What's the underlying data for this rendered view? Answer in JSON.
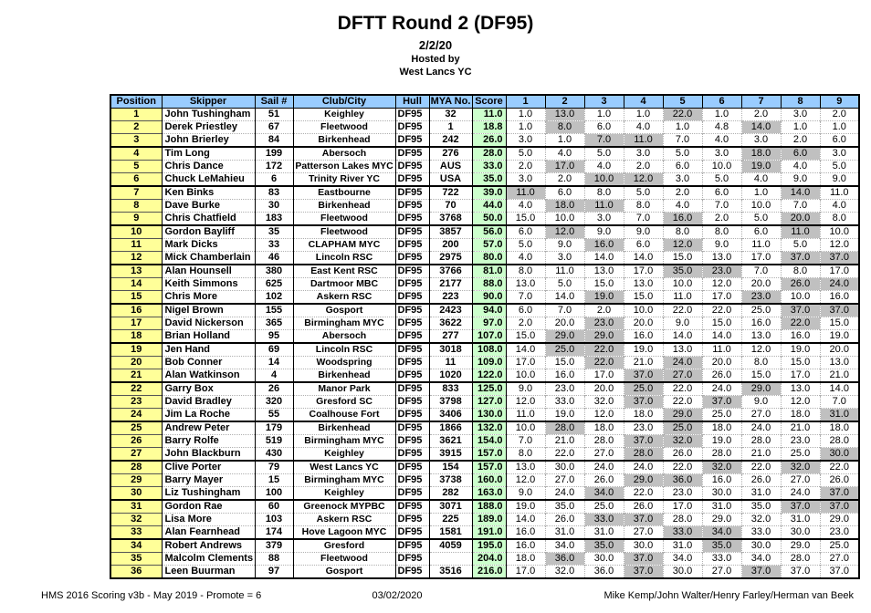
{
  "header": {
    "title": "DFTT Round 2 (DF95)",
    "date": "2/2/20",
    "hosted_by": "Hosted by",
    "host_club": "West Lancs YC"
  },
  "colors": {
    "header_bg": "#99CCFF",
    "position_bg": "#FFFF99",
    "score_bg": "#CCFFCC",
    "discard_bg": "#C0C0C0"
  },
  "table": {
    "headers": [
      "Position",
      "Skipper",
      "Sail #",
      "Club/City",
      "Hull",
      "MYA No.",
      "Score",
      "1",
      "2",
      "3",
      "4",
      "5",
      "6",
      "7",
      "8",
      "9"
    ],
    "rows": [
      {
        "pos": "1",
        "skipper": "John Tushingham",
        "sail": "51",
        "club": "Keighley",
        "hull": "DF95",
        "mya": "32",
        "score": "11.0",
        "races": [
          "1.0",
          "13.0",
          "1.0",
          "1.0",
          "22.0",
          "1.0",
          "2.0",
          "3.0",
          "2.0"
        ],
        "discards": [
          1,
          4
        ]
      },
      {
        "pos": "2",
        "skipper": "Derek Priestley",
        "sail": "67",
        "club": "Fleetwood",
        "hull": "DF95",
        "mya": "1",
        "score": "18.8",
        "races": [
          "1.0",
          "8.0",
          "6.0",
          "4.0",
          "1.0",
          "4.8",
          "14.0",
          "1.0",
          "1.0"
        ],
        "discards": [
          1,
          6
        ]
      },
      {
        "pos": "3",
        "skipper": "John Brierley",
        "sail": "84",
        "club": "Birkenhead",
        "hull": "DF95",
        "mya": "242",
        "score": "26.0",
        "races": [
          "3.0",
          "1.0",
          "7.0",
          "11.0",
          "7.0",
          "4.0",
          "3.0",
          "2.0",
          "6.0"
        ],
        "discards": [
          2,
          3
        ]
      },
      {
        "pos": "4",
        "skipper": "Tim Long",
        "sail": "199",
        "club": "Abersoch",
        "hull": "DF95",
        "mya": "276",
        "score": "28.0",
        "races": [
          "5.0",
          "4.0",
          "5.0",
          "3.0",
          "5.0",
          "3.0",
          "18.0",
          "6.0",
          "3.0"
        ],
        "discards": [
          6,
          7
        ]
      },
      {
        "pos": "5",
        "skipper": "Chris Dance",
        "sail": "172",
        "club": "Patterson Lakes MYC",
        "hull": "DF95",
        "mya": "AUS",
        "score": "33.0",
        "races": [
          "2.0",
          "17.0",
          "4.0",
          "2.0",
          "6.0",
          "10.0",
          "19.0",
          "4.0",
          "5.0"
        ],
        "discards": [
          1,
          6
        ]
      },
      {
        "pos": "6",
        "skipper": "Chuck LeMahieu",
        "sail": "6",
        "club": "Trinity River YC",
        "hull": "DF95",
        "mya": "USA",
        "score": "35.0",
        "races": [
          "3.0",
          "2.0",
          "10.0",
          "12.0",
          "3.0",
          "5.0",
          "4.0",
          "9.0",
          "9.0"
        ],
        "discards": [
          2,
          3
        ]
      },
      {
        "pos": "7",
        "skipper": "Ken Binks",
        "sail": "83",
        "club": "Eastbourne",
        "hull": "DF95",
        "mya": "722",
        "score": "39.0",
        "races": [
          "11.0",
          "6.0",
          "8.0",
          "5.0",
          "2.0",
          "6.0",
          "1.0",
          "14.0",
          "11.0"
        ],
        "discards": [
          0,
          7
        ]
      },
      {
        "pos": "8",
        "skipper": "Dave Burke",
        "sail": "30",
        "club": "Birkenhead",
        "hull": "DF95",
        "mya": "70",
        "score": "44.0",
        "races": [
          "4.0",
          "18.0",
          "11.0",
          "8.0",
          "4.0",
          "7.0",
          "10.0",
          "7.0",
          "4.0"
        ],
        "discards": [
          1,
          2
        ]
      },
      {
        "pos": "9",
        "skipper": "Chris Chatfield",
        "sail": "183",
        "club": "Fleetwood",
        "hull": "DF95",
        "mya": "3768",
        "score": "50.0",
        "races": [
          "15.0",
          "10.0",
          "3.0",
          "7.0",
          "16.0",
          "2.0",
          "5.0",
          "20.0",
          "8.0"
        ],
        "discards": [
          4,
          7
        ]
      },
      {
        "pos": "10",
        "skipper": "Gordon Bayliff",
        "sail": "35",
        "club": "Fleetwood",
        "hull": "DF95",
        "mya": "3857",
        "score": "56.0",
        "races": [
          "6.0",
          "12.0",
          "9.0",
          "9.0",
          "8.0",
          "8.0",
          "6.0",
          "11.0",
          "10.0"
        ],
        "discards": [
          1,
          7
        ]
      },
      {
        "pos": "11",
        "skipper": "Mark Dicks",
        "sail": "33",
        "club": "CLAPHAM MYC",
        "hull": "DF95",
        "mya": "200",
        "score": "57.0",
        "races": [
          "5.0",
          "9.0",
          "16.0",
          "6.0",
          "12.0",
          "9.0",
          "11.0",
          "5.0",
          "12.0"
        ],
        "discards": [
          2,
          4
        ]
      },
      {
        "pos": "12",
        "skipper": "Mick Chamberlain",
        "sail": "46",
        "club": "Lincoln RSC",
        "hull": "DF95",
        "mya": "2975",
        "score": "80.0",
        "races": [
          "4.0",
          "3.0",
          "14.0",
          "14.0",
          "15.0",
          "13.0",
          "17.0",
          "37.0",
          "37.0"
        ],
        "discards": [
          7,
          8
        ]
      },
      {
        "pos": "13",
        "skipper": "Alan Hounsell",
        "sail": "380",
        "club": "East Kent RSC",
        "hull": "DF95",
        "mya": "3766",
        "score": "81.0",
        "races": [
          "8.0",
          "11.0",
          "13.0",
          "17.0",
          "35.0",
          "23.0",
          "7.0",
          "8.0",
          "17.0"
        ],
        "discards": [
          4,
          5
        ]
      },
      {
        "pos": "14",
        "skipper": "Keith Simmons",
        "sail": "625",
        "club": "Dartmoor MBC",
        "hull": "DF95",
        "mya": "2177",
        "score": "88.0",
        "races": [
          "13.0",
          "5.0",
          "15.0",
          "13.0",
          "10.0",
          "12.0",
          "20.0",
          "26.0",
          "24.0"
        ],
        "discards": [
          7,
          8
        ]
      },
      {
        "pos": "15",
        "skipper": "Chris More",
        "sail": "102",
        "club": "Askern RSC",
        "hull": "DF95",
        "mya": "223",
        "score": "90.0",
        "races": [
          "7.0",
          "14.0",
          "19.0",
          "15.0",
          "11.0",
          "17.0",
          "23.0",
          "10.0",
          "16.0"
        ],
        "discards": [
          2,
          6
        ]
      },
      {
        "pos": "16",
        "skipper": "Nigel Brown",
        "sail": "155",
        "club": "Gosport",
        "hull": "DF95",
        "mya": "2423",
        "score": "94.0",
        "races": [
          "6.0",
          "7.0",
          "2.0",
          "10.0",
          "22.0",
          "22.0",
          "25.0",
          "37.0",
          "37.0"
        ],
        "discards": [
          7,
          8
        ]
      },
      {
        "pos": "17",
        "skipper": "David Nickerson",
        "sail": "365",
        "club": "Birmingham MYC",
        "hull": "DF95",
        "mya": "3622",
        "score": "97.0",
        "races": [
          "2.0",
          "20.0",
          "23.0",
          "20.0",
          "9.0",
          "15.0",
          "16.0",
          "22.0",
          "15.0"
        ],
        "discards": [
          2,
          7
        ]
      },
      {
        "pos": "18",
        "skipper": "Brian Holland",
        "sail": "95",
        "club": "Abersoch",
        "hull": "DF95",
        "mya": "277",
        "score": "107.0",
        "races": [
          "15.0",
          "29.0",
          "29.0",
          "16.0",
          "14.0",
          "14.0",
          "13.0",
          "16.0",
          "19.0"
        ],
        "discards": [
          1,
          2
        ]
      },
      {
        "pos": "19",
        "skipper": "Jen Hand",
        "sail": "69",
        "club": "Lincoln RSC",
        "hull": "DF95",
        "mya": "3018",
        "score": "108.0",
        "races": [
          "14.0",
          "25.0",
          "22.0",
          "19.0",
          "13.0",
          "11.0",
          "12.0",
          "19.0",
          "20.0"
        ],
        "discards": [
          1,
          2
        ]
      },
      {
        "pos": "20",
        "skipper": "Bob Conner",
        "sail": "14",
        "club": "Woodspring",
        "hull": "DF95",
        "mya": "11",
        "score": "109.0",
        "races": [
          "17.0",
          "15.0",
          "22.0",
          "21.0",
          "24.0",
          "20.0",
          "8.0",
          "15.0",
          "13.0"
        ],
        "discards": [
          2,
          4
        ]
      },
      {
        "pos": "21",
        "skipper": "Alan Watkinson",
        "sail": "4",
        "club": "Birkenhead",
        "hull": "DF95",
        "mya": "1020",
        "score": "122.0",
        "races": [
          "10.0",
          "16.0",
          "17.0",
          "37.0",
          "27.0",
          "26.0",
          "15.0",
          "17.0",
          "21.0"
        ],
        "discards": [
          3,
          4
        ]
      },
      {
        "pos": "22",
        "skipper": "Garry Box",
        "sail": "26",
        "club": "Manor Park",
        "hull": "DF95",
        "mya": "833",
        "score": "125.0",
        "races": [
          "9.0",
          "23.0",
          "20.0",
          "25.0",
          "22.0",
          "24.0",
          "29.0",
          "13.0",
          "14.0"
        ],
        "discards": [
          3,
          6
        ]
      },
      {
        "pos": "23",
        "skipper": "David Bradley",
        "sail": "320",
        "club": "Gresford SC",
        "hull": "DF95",
        "mya": "3798",
        "score": "127.0",
        "races": [
          "12.0",
          "33.0",
          "32.0",
          "37.0",
          "22.0",
          "37.0",
          "9.0",
          "12.0",
          "7.0"
        ],
        "discards": [
          3,
          5
        ]
      },
      {
        "pos": "24",
        "skipper": "Jim La Roche",
        "sail": "55",
        "club": "Coalhouse Fort",
        "hull": "DF95",
        "mya": "3406",
        "score": "130.0",
        "races": [
          "11.0",
          "19.0",
          "12.0",
          "18.0",
          "29.0",
          "25.0",
          "27.0",
          "18.0",
          "31.0"
        ],
        "discards": [
          4,
          8
        ]
      },
      {
        "pos": "25",
        "skipper": "Andrew Peter",
        "sail": "179",
        "club": "Birkenhead",
        "hull": "DF95",
        "mya": "1866",
        "score": "132.0",
        "races": [
          "10.0",
          "28.0",
          "18.0",
          "23.0",
          "25.0",
          "18.0",
          "24.0",
          "21.0",
          "18.0"
        ],
        "discards": [
          1,
          4
        ]
      },
      {
        "pos": "26",
        "skipper": "Barry Rolfe",
        "sail": "519",
        "club": "Birmingham MYC",
        "hull": "DF95",
        "mya": "3621",
        "score": "154.0",
        "races": [
          "7.0",
          "21.0",
          "28.0",
          "37.0",
          "32.0",
          "19.0",
          "28.0",
          "23.0",
          "28.0"
        ],
        "discards": [
          3,
          4
        ]
      },
      {
        "pos": "27",
        "skipper": "John Blackburn",
        "sail": "430",
        "club": "Keighley",
        "hull": "DF95",
        "mya": "3915",
        "score": "157.0",
        "races": [
          "8.0",
          "22.0",
          "27.0",
          "28.0",
          "26.0",
          "28.0",
          "21.0",
          "25.0",
          "30.0"
        ],
        "discards": [
          3,
          8
        ]
      },
      {
        "pos": "28",
        "skipper": "Clive Porter",
        "sail": "79",
        "club": "West Lancs YC",
        "hull": "DF95",
        "mya": "154",
        "score": "157.0",
        "races": [
          "13.0",
          "30.0",
          "24.0",
          "24.0",
          "22.0",
          "32.0",
          "22.0",
          "32.0",
          "22.0"
        ],
        "discards": [
          5,
          7
        ]
      },
      {
        "pos": "29",
        "skipper": "Barry Mayer",
        "sail": "15",
        "club": "Birmingham MYC",
        "hull": "DF95",
        "mya": "3738",
        "score": "160.0",
        "races": [
          "12.0",
          "27.0",
          "26.0",
          "29.0",
          "36.0",
          "16.0",
          "26.0",
          "27.0",
          "26.0"
        ],
        "discards": [
          3,
          4
        ]
      },
      {
        "pos": "30",
        "skipper": "Liz Tushingham",
        "sail": "100",
        "club": "Keighley",
        "hull": "DF95",
        "mya": "282",
        "score": "163.0",
        "races": [
          "9.0",
          "24.0",
          "34.0",
          "22.0",
          "23.0",
          "30.0",
          "31.0",
          "24.0",
          "37.0"
        ],
        "discards": [
          2,
          8
        ]
      },
      {
        "pos": "31",
        "skipper": "Gordon Rae",
        "sail": "60",
        "club": "Greenock MYPBC",
        "hull": "DF95",
        "mya": "3071",
        "score": "188.0",
        "races": [
          "19.0",
          "35.0",
          "25.0",
          "26.0",
          "17.0",
          "31.0",
          "35.0",
          "37.0",
          "37.0"
        ],
        "discards": [
          7,
          8
        ]
      },
      {
        "pos": "32",
        "skipper": "Lisa More",
        "sail": "103",
        "club": "Askern RSC",
        "hull": "DF95",
        "mya": "225",
        "score": "189.0",
        "races": [
          "14.0",
          "26.0",
          "33.0",
          "37.0",
          "28.0",
          "29.0",
          "32.0",
          "31.0",
          "29.0"
        ],
        "discards": [
          2,
          3
        ]
      },
      {
        "pos": "33",
        "skipper": "Alan Fearnhead",
        "sail": "174",
        "club": "Hove Lagoon MYC",
        "hull": "DF95",
        "mya": "1581",
        "score": "191.0",
        "races": [
          "16.0",
          "31.0",
          "31.0",
          "27.0",
          "33.0",
          "34.0",
          "33.0",
          "30.0",
          "23.0"
        ],
        "discards": [
          4,
          5
        ]
      },
      {
        "pos": "34",
        "skipper": "Robert Andrews",
        "sail": "379",
        "club": "Gresford",
        "hull": "DF95",
        "mya": "4059",
        "score": "195.0",
        "races": [
          "16.0",
          "34.0",
          "35.0",
          "30.0",
          "31.0",
          "35.0",
          "30.0",
          "29.0",
          "25.0"
        ],
        "discards": [
          2,
          5
        ]
      },
      {
        "pos": "35",
        "skipper": "Malcolm Clements",
        "sail": "88",
        "club": "Fleetwood",
        "hull": "DF95",
        "mya": "",
        "score": "204.0",
        "races": [
          "18.0",
          "36.0",
          "30.0",
          "37.0",
          "34.0",
          "33.0",
          "34.0",
          "28.0",
          "27.0"
        ],
        "discards": [
          1,
          3
        ]
      },
      {
        "pos": "36",
        "skipper": "Leen Buurman",
        "sail": "97",
        "club": "Gosport",
        "hull": "DF95",
        "mya": "3516",
        "score": "216.0",
        "races": [
          "17.0",
          "32.0",
          "36.0",
          "37.0",
          "30.0",
          "27.0",
          "37.0",
          "37.0",
          "37.0"
        ],
        "discards": [
          3,
          6
        ]
      }
    ]
  },
  "footer": {
    "left": "HMS 2016 Scoring v3b - May 2019 - Promote = 6",
    "center": "03/02/2020",
    "right": "Mike Kemp/John Walter/Henry Farley/Herman van Beek"
  }
}
